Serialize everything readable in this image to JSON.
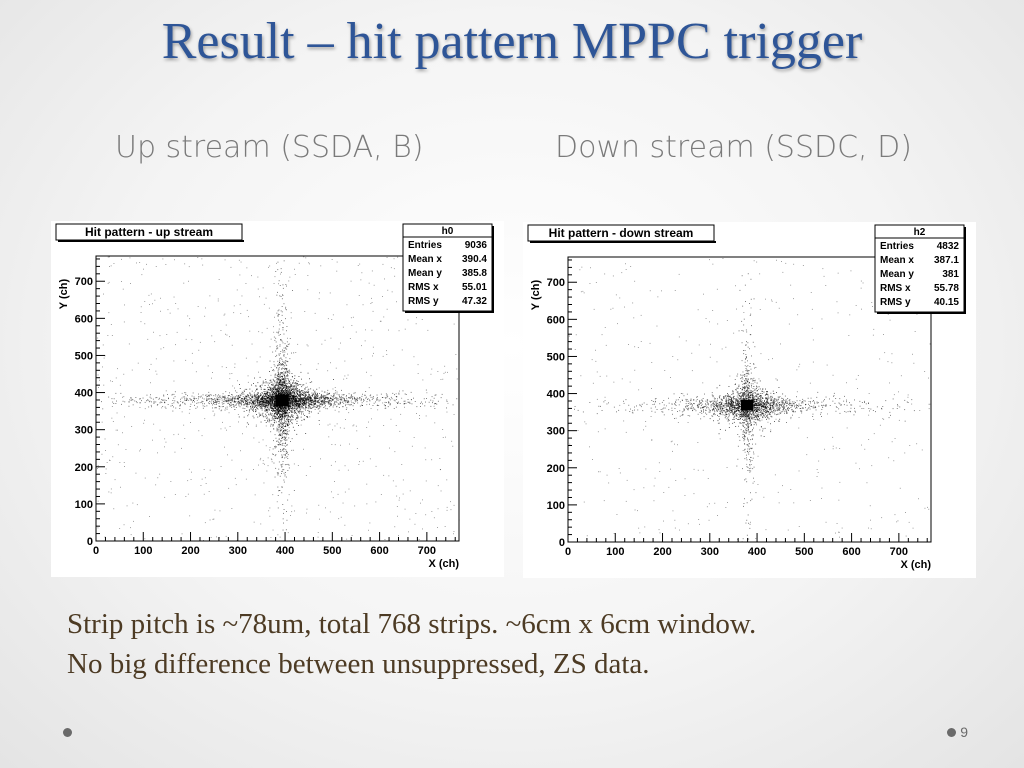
{
  "slide": {
    "title": "Result – hit pattern MPPC trigger",
    "up_heading": "Up stream (SSDA, B)",
    "down_heading": "Down stream (SSDC, D)",
    "body_line1": "Strip pitch is ~78um, total 768 strips. ~6cm x 6cm window.",
    "body_line2": "No big difference between unsuppressed, ZS data.",
    "slide_number": "9"
  },
  "colors": {
    "title": "#2e5597",
    "heading": "#7a7a7a",
    "body_text": "#4d3b24",
    "points": "#000000"
  },
  "chart_data": [
    {
      "type": "scatter",
      "title": "Hit pattern - up stream",
      "xlabel": "X (ch)",
      "ylabel": "Y (ch)",
      "xlim": [
        0,
        768
      ],
      "ylim": [
        0,
        768
      ],
      "xticks": [
        0,
        100,
        200,
        300,
        400,
        500,
        600,
        700
      ],
      "yticks": [
        0,
        100,
        200,
        300,
        400,
        500,
        600,
        700
      ],
      "grid": false,
      "stats": {
        "name": "h0",
        "rows": [
          {
            "label": "Entries",
            "value": "9036"
          },
          {
            "label": "Mean x",
            "value": "390.4"
          },
          {
            "label": "Mean y",
            "value": "385.8"
          },
          {
            "label": "RMS x",
            "value": "55.01"
          },
          {
            "label": "RMS y",
            "value": "47.32"
          }
        ]
      },
      "distribution": {
        "entries": 9036,
        "core": {
          "x": 393,
          "y": 380,
          "half_width": 12,
          "half_height": 15
        },
        "horizontal_band": {
          "y": 380,
          "x_range": [
            0,
            768
          ],
          "half_height": 18
        },
        "vertical_band": {
          "x": 393,
          "y_range": [
            0,
            768
          ],
          "half_width": 14
        }
      }
    },
    {
      "type": "scatter",
      "title": "Hit pattern - down stream",
      "xlabel": "X (ch)",
      "ylabel": "Y (ch)",
      "xlim": [
        0,
        768
      ],
      "ylim": [
        0,
        768
      ],
      "xticks": [
        0,
        100,
        200,
        300,
        400,
        500,
        600,
        700
      ],
      "yticks": [
        0,
        100,
        200,
        300,
        400,
        500,
        600,
        700
      ],
      "grid": false,
      "stats": {
        "name": "h2",
        "rows": [
          {
            "label": "Entries",
            "value": "4832"
          },
          {
            "label": "Mean x",
            "value": "387.1"
          },
          {
            "label": "Mean y",
            "value": "381"
          },
          {
            "label": "RMS x",
            "value": "55.78"
          },
          {
            "label": "RMS y",
            "value": "40.15"
          }
        ]
      },
      "distribution": {
        "entries": 4832,
        "core": {
          "x": 378,
          "y": 370,
          "half_width": 12,
          "half_height": 13
        },
        "horizontal_band": {
          "y": 368,
          "x_range": [
            0,
            768
          ],
          "half_height": 22
        },
        "vertical_band": {
          "x": 378,
          "y_range": [
            0,
            768
          ],
          "half_width": 14
        }
      }
    }
  ]
}
